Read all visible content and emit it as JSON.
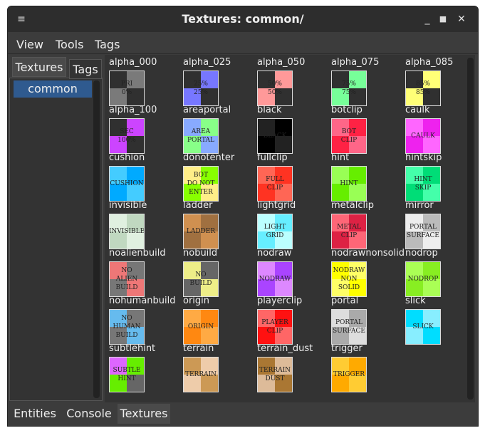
{
  "window": {
    "title": "Textures: common/"
  },
  "menu": [
    "View",
    "Tools",
    "Tags"
  ],
  "left_tabs": [
    "Textures",
    "Tags"
  ],
  "folders": [
    "common"
  ],
  "textures": [
    {
      "name": "alpha_000",
      "label": [
        "PRI",
        "0%"
      ],
      "colors": [
        "#303030",
        "#7a7a7a",
        "#7a7a7a",
        "#303030"
      ]
    },
    {
      "name": "alpha_025",
      "label": [
        "25%",
        "25%"
      ],
      "colors": [
        "#303030",
        "#7777ff",
        "#7777ff",
        "#303030"
      ]
    },
    {
      "name": "alpha_050",
      "label": [
        "50%",
        "50%"
      ],
      "colors": [
        "#303030",
        "#ff9999",
        "#ff9999",
        "#303030"
      ]
    },
    {
      "name": "alpha_075",
      "label": [
        "75%",
        "75%"
      ],
      "colors": [
        "#303030",
        "#77ff99",
        "#77ff99",
        "#303030"
      ]
    },
    {
      "name": "alpha_085",
      "label": [
        "85%",
        "85%"
      ],
      "colors": [
        "#303030",
        "#ffff77",
        "#ffff77",
        "#303030"
      ]
    },
    {
      "name": "alpha_100",
      "label": [
        "SEC",
        "100%"
      ],
      "colors": [
        "#303030",
        "#cc44ff",
        "#cc44ff",
        "#303030"
      ]
    },
    {
      "name": "areaportal",
      "label": [
        "AREA",
        "PORTAL"
      ],
      "colors": [
        "#88aaff",
        "#88ff88",
        "#88ff88",
        "#88aaff"
      ]
    },
    {
      "name": "black",
      "label": [
        "BLACK"
      ],
      "colors": [
        "#222222",
        "#000000",
        "#000000",
        "#222222"
      ]
    },
    {
      "name": "botclip",
      "label": [
        "BOT",
        "CLIP"
      ],
      "colors": [
        "#ff6688",
        "#ff2244",
        "#ff2244",
        "#ff6688"
      ]
    },
    {
      "name": "caulk",
      "label": [
        "CAULK"
      ],
      "colors": [
        "#ff66ff",
        "#ee22ee",
        "#ee22ee",
        "#ff66ff"
      ]
    },
    {
      "name": "cushion",
      "label": [
        "CUSHION"
      ],
      "colors": [
        "#44ccff",
        "#00aaff",
        "#00aaff",
        "#44ccff"
      ]
    },
    {
      "name": "donotenter",
      "label": [
        "BOT",
        "DO NOT",
        "ENTER"
      ],
      "colors": [
        "#ffee88",
        "#88ff00",
        "#88ff00",
        "#ffee88"
      ]
    },
    {
      "name": "fullclip",
      "label": [
        "FULL",
        "CLIP"
      ],
      "colors": [
        "#ff6655",
        "#ff3322",
        "#ff3322",
        "#ff6655"
      ]
    },
    {
      "name": "hint",
      "label": [
        "HINT"
      ],
      "colors": [
        "#99ff55",
        "#66ee00",
        "#66ee00",
        "#99ff55"
      ]
    },
    {
      "name": "hintskip",
      "label": [
        "HINT",
        "SKIP"
      ],
      "colors": [
        "#44ffaa",
        "#00dd77",
        "#00dd77",
        "#44ffaa"
      ]
    },
    {
      "name": "invisible",
      "label": [
        "INVISIBLE"
      ],
      "colors": [
        "#e0f0e0",
        "#c0d8c0",
        "#c0d8c0",
        "#e0f0e0"
      ]
    },
    {
      "name": "ladder",
      "label": [
        "LADDER"
      ],
      "colors": [
        "#d09050",
        "#a07040",
        "#a07040",
        "#d09050"
      ]
    },
    {
      "name": "lightgrid",
      "label": [
        "LIGHT",
        "GRID"
      ],
      "colors": [
        "#bbffff",
        "#66eeff",
        "#66eeff",
        "#bbffff"
      ]
    },
    {
      "name": "metalclip",
      "label": [
        "METAL",
        "CLIP"
      ],
      "colors": [
        "#ff6677",
        "#dd2244",
        "#dd2244",
        "#ff6677"
      ]
    },
    {
      "name": "mirror",
      "label": [
        "PORTAL",
        "SURFACE"
      ],
      "colors": [
        "#eeeeee",
        "#bbbbbb",
        "#bbbbbb",
        "#eeeeee"
      ]
    },
    {
      "name": "noalienbuild",
      "label": [
        "NO",
        "ALIEN",
        "BUILD"
      ],
      "colors": [
        "#ee7777",
        "#777777",
        "#777777",
        "#ee7777"
      ]
    },
    {
      "name": "nobuild",
      "label": [
        "NO",
        "BUILD"
      ],
      "colors": [
        "#eeee88",
        "#666666",
        "#666666",
        "#eeee88"
      ]
    },
    {
      "name": "nodraw",
      "label": [
        "NODRAW"
      ],
      "colors": [
        "#dd88ff",
        "#aa44ff",
        "#aa44ff",
        "#dd88ff"
      ]
    },
    {
      "name": "nodrawnonsolid",
      "label": [
        "NODRAW",
        "NON",
        "SOLID"
      ],
      "colors": [
        "#ffff00",
        "#ffff66",
        "#ffff66",
        "#ffff00"
      ]
    },
    {
      "name": "nodrop",
      "label": [
        "NODROP"
      ],
      "colors": [
        "#aaff55",
        "#88ee22",
        "#88ee22",
        "#aaff55"
      ]
    },
    {
      "name": "nohumanbuild",
      "label": [
        "NO",
        "HUMAN",
        "BUILD"
      ],
      "colors": [
        "#66bbee",
        "#777777",
        "#777777",
        "#66bbee"
      ]
    },
    {
      "name": "origin",
      "label": [
        "ORIGIN"
      ],
      "colors": [
        "#ffaa44",
        "#ff8811",
        "#ff8811",
        "#ffaa44"
      ]
    },
    {
      "name": "playerclip",
      "label": [
        "PLAYER",
        "CLIP"
      ],
      "colors": [
        "#ff6666",
        "#ff1111",
        "#ff1111",
        "#ff6666"
      ]
    },
    {
      "name": "portal",
      "label": [
        "PORTAL",
        "SURFACE"
      ],
      "colors": [
        "#dddddd",
        "#aaaaaa",
        "#aaaaaa",
        "#dddddd"
      ]
    },
    {
      "name": "slick",
      "label": [
        "SLICK"
      ],
      "colors": [
        "#00ddff",
        "#88eeff",
        "#88eeff",
        "#00ddff"
      ]
    },
    {
      "name": "subtlehint",
      "label": [
        "SUBTLE",
        "HINT"
      ],
      "colors": [
        "#dd66ff",
        "#66ee00",
        "#66ee00",
        "#666666"
      ]
    },
    {
      "name": "terrain",
      "label": [
        "TERRAIN"
      ],
      "colors": [
        "#cc9955",
        "#eeccaa",
        "#eeccaa",
        "#cc9955"
      ]
    },
    {
      "name": "terrain_dust",
      "label": [
        "TERRAIN",
        "DUST"
      ],
      "colors": [
        "#aa7733",
        "#ddbb99",
        "#ddbb99",
        "#aa7733"
      ]
    },
    {
      "name": "trigger",
      "label": [
        "TRIGGER"
      ],
      "colors": [
        "#ffcc33",
        "#ffaa00",
        "#ffaa00",
        "#ffcc33"
      ]
    }
  ],
  "bottom_tabs": [
    "Entities",
    "Console",
    "Textures"
  ]
}
